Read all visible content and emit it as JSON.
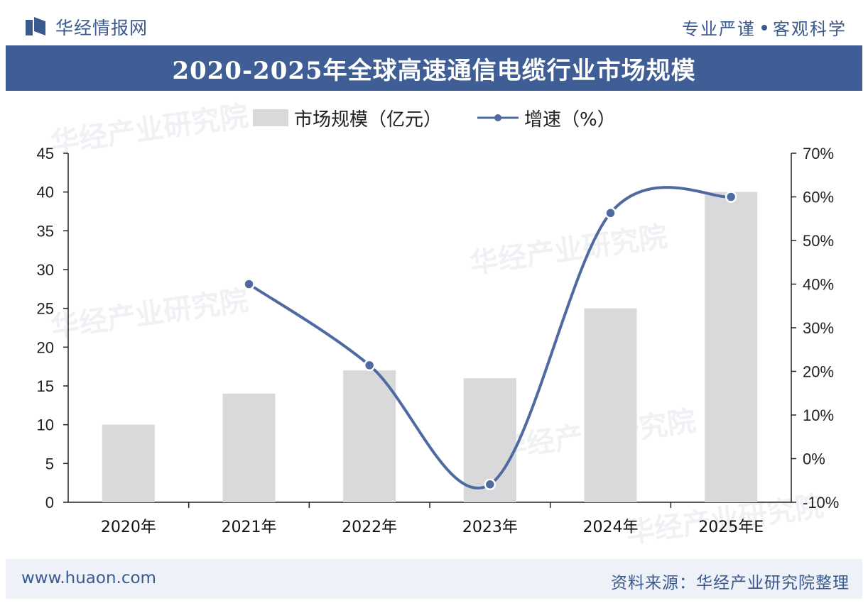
{
  "header": {
    "brand": "华经情报网",
    "slogan_left": "专业严谨",
    "slogan_right": "客观科学"
  },
  "title": "2020-2025年全球高速通信电缆行业市场规模",
  "legend": {
    "bar": "市场规模（亿元）",
    "line": "增速（%）"
  },
  "footer": {
    "site": "www.huaon.com",
    "source": "资料来源：华经产业研究院整理"
  },
  "watermark": "华经产业研究院",
  "colors": {
    "bar": "#d9d9db",
    "line": "#4e6aa0",
    "title_band": "#3f5e95",
    "brand": "#3a5a8f"
  },
  "chart_data": {
    "type": "bar",
    "categories": [
      "2020年",
      "2021年",
      "2022年",
      "2023年",
      "2024年",
      "2025年E"
    ],
    "series": [
      {
        "name": "市场规模（亿元）",
        "type": "bar",
        "axis": "left",
        "values": [
          10,
          14,
          17,
          16,
          25,
          40
        ]
      },
      {
        "name": "增速（%）",
        "type": "line",
        "axis": "right",
        "values": [
          null,
          40,
          21.4,
          -5.9,
          56.3,
          60
        ]
      }
    ],
    "y_left": {
      "min": 0,
      "max": 45,
      "ticks": [
        "0",
        "5",
        "10",
        "15",
        "20",
        "25",
        "30",
        "35",
        "40",
        "45"
      ]
    },
    "y_right": {
      "min": -10,
      "max": 70,
      "ticks": [
        "-10%",
        "0%",
        "10%",
        "20%",
        "30%",
        "40%",
        "50%",
        "60%",
        "70%"
      ]
    },
    "legend_position": "top-center",
    "grid": false
  }
}
